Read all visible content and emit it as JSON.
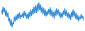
{
  "chart_data": {
    "type": "line",
    "color": "#3a8fd8",
    "tick_labels": false,
    "grid": false,
    "ylim": [
      0,
      100
    ],
    "values": [
      70,
      55,
      80,
      62,
      75,
      50,
      68,
      45,
      60,
      30,
      40,
      15,
      35,
      10,
      25,
      20,
      45,
      30,
      50,
      35,
      55,
      40,
      60,
      38,
      52,
      45,
      58,
      42,
      65,
      48,
      60,
      40,
      55,
      38,
      62,
      45,
      70,
      50,
      72,
      55,
      80,
      58,
      85,
      60,
      90,
      65,
      95,
      70,
      88,
      62,
      80,
      55,
      75,
      50,
      70,
      48,
      65,
      52,
      72,
      55,
      78,
      50,
      70,
      45,
      62,
      40,
      68,
      50,
      75,
      55,
      70,
      48,
      62,
      42,
      58,
      45,
      66,
      52,
      74,
      50,
      68,
      44,
      60,
      40,
      55,
      35,
      62,
      45,
      70,
      48,
      64,
      40,
      58,
      35,
      50,
      30,
      45,
      38,
      55,
      40,
      48,
      32
    ]
  }
}
